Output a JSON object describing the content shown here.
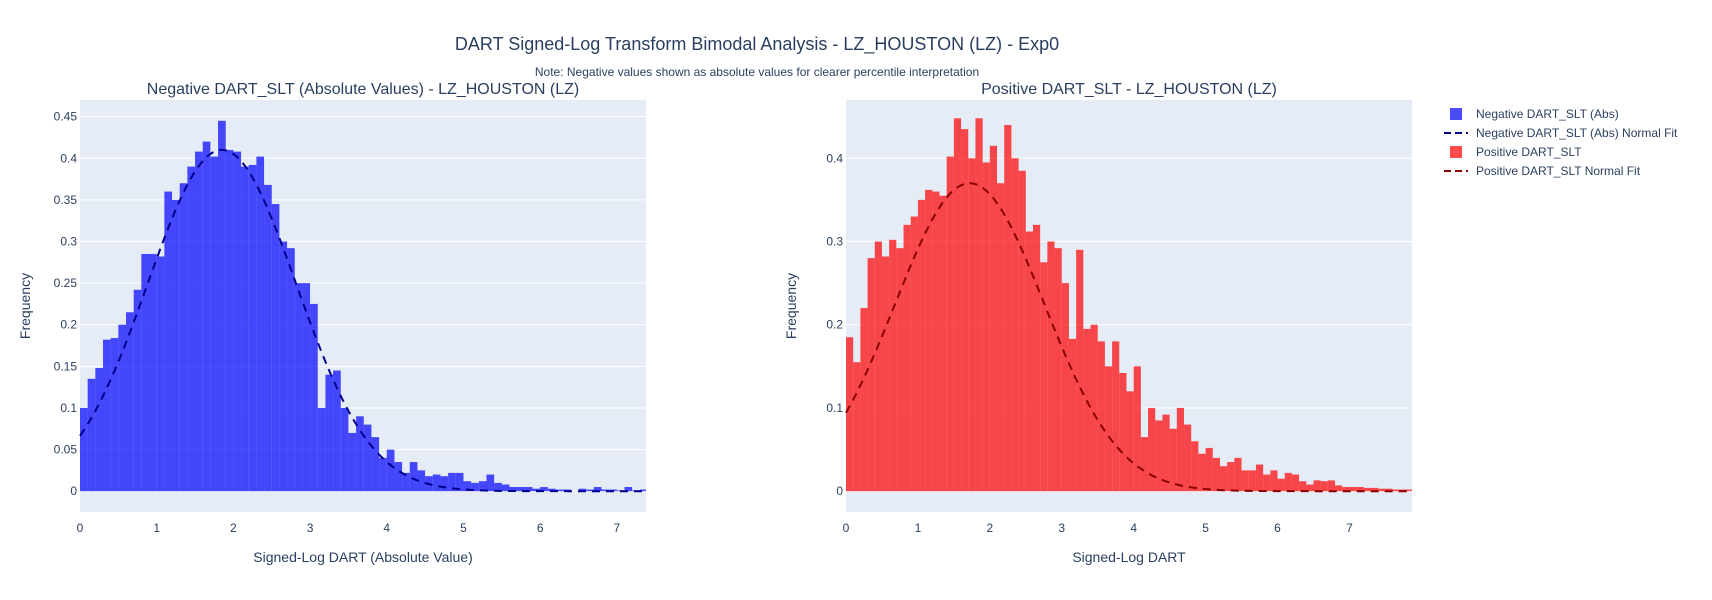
{
  "title": "DART Signed-Log Transform Bimodal Analysis - LZ_HOUSTON (LZ) - Exp0",
  "note": "Note: Negative values shown as absolute values for clearer percentile interpretation",
  "colors": {
    "neg_bar": "#0000ff",
    "neg_fit": "#00008b",
    "pos_bar": "#ff0000",
    "pos_fit": "#8b0000",
    "plot_bg": "#e5ecf6"
  },
  "legend": [
    {
      "label": "Negative DART_SLT (Abs)",
      "kind": "bar",
      "color": "#0000ff"
    },
    {
      "label": "Negative DART_SLT (Abs) Normal Fit",
      "kind": "dash",
      "color": "#00008b"
    },
    {
      "label": "Positive DART_SLT",
      "kind": "bar",
      "color": "#ff0000"
    },
    {
      "label": "Positive DART_SLT Normal Fit",
      "kind": "dash",
      "color": "#8b0000"
    }
  ],
  "chart_data": [
    {
      "type": "bar",
      "subtitle": "Negative DART_SLT (Absolute Values) - LZ_HOUSTON (LZ)",
      "xlabel": "Signed-Log DART (Absolute Value)",
      "ylabel": "Frequency",
      "xlim": [
        0,
        7.38
      ],
      "ylim": [
        -0.025,
        0.47
      ],
      "xticks": [
        "0",
        "1",
        "2",
        "3",
        "4",
        "5",
        "6",
        "7"
      ],
      "yticks": [
        "0",
        "0.05",
        "0.1",
        "0.15",
        "0.2",
        "0.25",
        "0.3",
        "0.35",
        "0.4",
        "0.45"
      ],
      "bin_start": 0,
      "bin_width": 0.1,
      "series": [
        {
          "name": "Negative DART_SLT (Abs)",
          "values": [
            0.1,
            0.135,
            0.148,
            0.182,
            0.184,
            0.2,
            0.215,
            0.242,
            0.285,
            0.285,
            0.282,
            0.36,
            0.35,
            0.37,
            0.39,
            0.408,
            0.42,
            0.402,
            0.445,
            0.41,
            0.408,
            0.39,
            0.392,
            0.402,
            0.368,
            0.345,
            0.3,
            0.292,
            0.25,
            0.25,
            0.225,
            0.1,
            0.14,
            0.145,
            0.1,
            0.07,
            0.09,
            0.08,
            0.065,
            0.04,
            0.05,
            0.035,
            0.022,
            0.035,
            0.025,
            0.018,
            0.02,
            0.018,
            0.022,
            0.022,
            0.012,
            0.01,
            0.012,
            0.02,
            0.01,
            0.008,
            0.005,
            0.005,
            0.005,
            0.003,
            0.005,
            0.003,
            0.002,
            0.002,
            0.0,
            0.003,
            0.002,
            0.005,
            0.002,
            0.002,
            0.001,
            0.005,
            0.001,
            0.002
          ]
        },
        {
          "name": "Negative DART_SLT (Abs) Normal Fit",
          "mean": 1.85,
          "sd": 0.97,
          "peak": 0.41
        }
      ]
    },
    {
      "type": "bar",
      "subtitle": "Positive DART_SLT - LZ_HOUSTON (LZ)",
      "xlabel": "Signed-Log DART",
      "ylabel": "Frequency",
      "xlim": [
        0,
        7.87
      ],
      "ylim": [
        -0.025,
        0.47
      ],
      "xticks": [
        "0",
        "1",
        "2",
        "3",
        "4",
        "5",
        "6",
        "7"
      ],
      "yticks": [
        "0",
        "0.1",
        "0.2",
        "0.3",
        "0.4"
      ],
      "bin_start": 0,
      "bin_width": 0.1,
      "series": [
        {
          "name": "Positive DART_SLT",
          "values": [
            0.185,
            0.155,
            0.22,
            0.28,
            0.3,
            0.282,
            0.302,
            0.292,
            0.32,
            0.33,
            0.35,
            0.362,
            0.36,
            0.355,
            0.402,
            0.448,
            0.435,
            0.4,
            0.448,
            0.395,
            0.415,
            0.37,
            0.44,
            0.4,
            0.385,
            0.312,
            0.32,
            0.275,
            0.3,
            0.292,
            0.25,
            0.183,
            0.29,
            0.195,
            0.2,
            0.18,
            0.15,
            0.18,
            0.142,
            0.12,
            0.15,
            0.065,
            0.1,
            0.085,
            0.092,
            0.075,
            0.1,
            0.08,
            0.06,
            0.045,
            0.052,
            0.04,
            0.03,
            0.035,
            0.04,
            0.025,
            0.025,
            0.032,
            0.02,
            0.025,
            0.015,
            0.022,
            0.02,
            0.012,
            0.008,
            0.013,
            0.012,
            0.013,
            0.007,
            0.005,
            0.005,
            0.005,
            0.004,
            0.004,
            0.003,
            0.003,
            0.002,
            0.002,
            0.002,
            0.001,
            0.001,
            0.002,
            0.001,
            0.002,
            0.001,
            0.001,
            0.001,
            0.002,
            0.001,
            0.001,
            0.002,
            0.003,
            0.001,
            0.001,
            0.001,
            0.002,
            0.001,
            0.0,
            0.001
          ]
        },
        {
          "name": "Positive DART_SLT Normal Fit",
          "mean": 1.72,
          "sd": 1.04,
          "peak": 0.37
        }
      ]
    }
  ]
}
